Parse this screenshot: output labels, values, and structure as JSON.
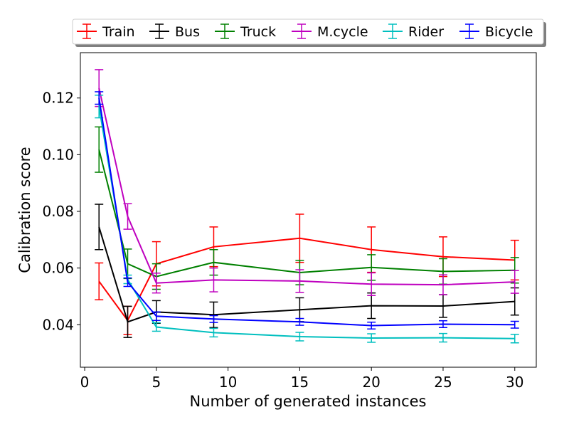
{
  "chart_data": {
    "type": "line",
    "xlabel": "Number of generated instances",
    "ylabel": "Calibration score",
    "x": [
      1,
      3,
      5,
      9,
      15,
      20,
      25,
      30
    ],
    "xlim": [
      -0.3,
      31.5
    ],
    "ylim": [
      0.025,
      0.136
    ],
    "xticks": [
      0,
      5,
      10,
      15,
      20,
      25,
      30
    ],
    "yticks": [
      0.04,
      0.06,
      0.08,
      0.1,
      0.12
    ],
    "ytick_labels": [
      "0.04",
      "0.06",
      "0.08",
      "0.10",
      "0.12"
    ],
    "legend_position": "top",
    "series": [
      {
        "name": "Train",
        "color": "#ff0000",
        "values": [
          0.0553,
          0.0415,
          0.0615,
          0.0675,
          0.0705,
          0.0665,
          0.064,
          0.0628
        ],
        "errors": [
          0.0065,
          0.005,
          0.0078,
          0.007,
          0.0085,
          0.008,
          0.007,
          0.007
        ]
      },
      {
        "name": "Bus",
        "color": "#000000",
        "values": [
          0.0745,
          0.041,
          0.0445,
          0.0435,
          0.0453,
          0.0467,
          0.0466,
          0.0482
        ],
        "errors": [
          0.008,
          0.0055,
          0.004,
          0.0045,
          0.0042,
          0.0045,
          0.004,
          0.0048
        ]
      },
      {
        "name": "Truck",
        "color": "#008000",
        "values": [
          0.1018,
          0.0615,
          0.057,
          0.062,
          0.0584,
          0.0602,
          0.0588,
          0.0592
        ],
        "errors": [
          0.008,
          0.0052,
          0.0045,
          0.0045,
          0.0043,
          0.0045,
          0.0045,
          0.0045
        ]
      },
      {
        "name": "M.cycle",
        "color": "#bf00bf",
        "values": [
          0.1235,
          0.0782,
          0.0547,
          0.0558,
          0.0554,
          0.0543,
          0.0541,
          0.0551
        ],
        "errors": [
          0.0065,
          0.0045,
          0.0035,
          0.0042,
          0.004,
          0.004,
          0.0035,
          0.004
        ]
      },
      {
        "name": "Rider",
        "color": "#00bfbf",
        "values": [
          0.117,
          0.056,
          0.0392,
          0.0372,
          0.0358,
          0.0353,
          0.0354,
          0.0351
        ],
        "errors": [
          0.004,
          0.0015,
          0.0015,
          0.0015,
          0.0015,
          0.0015,
          0.0015,
          0.0015
        ]
      },
      {
        "name": "Bicycle",
        "color": "#0000ff",
        "values": [
          0.12,
          0.055,
          0.043,
          0.042,
          0.041,
          0.0397,
          0.0402,
          0.04
        ],
        "errors": [
          0.0022,
          0.0015,
          0.0015,
          0.0012,
          0.0012,
          0.0012,
          0.0012,
          0.0012
        ]
      }
    ]
  }
}
